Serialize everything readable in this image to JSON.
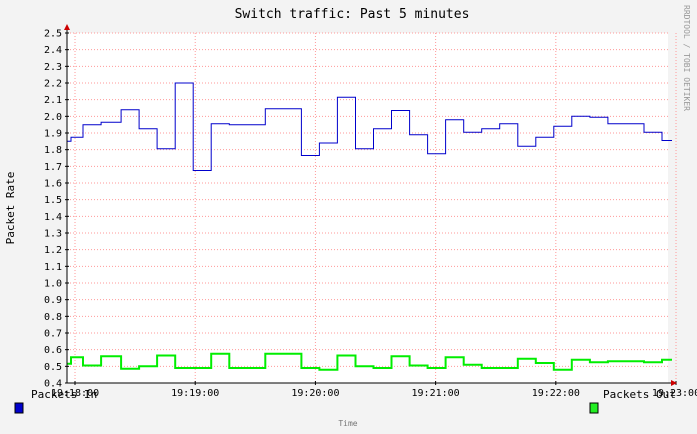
{
  "chart_data": {
    "type": "line",
    "title": "Switch traffic: Past 5 minutes",
    "ylabel": "Packet Rate",
    "xlabel": "Time",
    "watermark": "RRDTOOL / TOBI OETIKER",
    "ylim": [
      0.4,
      2.5
    ],
    "yticks": [
      "0.4",
      "0.5",
      "0.6",
      "0.7",
      "0.8",
      "0.9",
      "1.0",
      "1.1",
      "1.2",
      "1.3",
      "1.4",
      "1.5",
      "1.6",
      "1.7",
      "1.8",
      "1.9",
      "2.0",
      "2.1",
      "2.2",
      "2.3",
      "2.4",
      "2.5"
    ],
    "xticks": [
      "19:18:00",
      "19:19:00",
      "19:20:00",
      "19:21:00",
      "19:22:00",
      "19:23:00"
    ],
    "xtick_values": [
      0,
      60,
      120,
      180,
      240,
      300
    ],
    "xlim": [
      -4,
      296
    ],
    "grid": true,
    "step": true,
    "x": [
      -4,
      -2,
      4,
      13,
      23,
      32,
      41,
      50,
      59,
      68,
      77,
      86,
      95,
      113,
      122,
      131,
      140,
      149,
      158,
      167,
      176,
      185,
      194,
      203,
      212,
      221,
      230,
      239,
      248,
      257,
      266,
      275,
      284,
      293
    ],
    "series": [
      {
        "name": "Packets In",
        "color": "#0000cc",
        "values": [
          1.85,
          1.875,
          1.95,
          1.965,
          2.04,
          1.925,
          1.805,
          2.2,
          1.675,
          1.955,
          1.95,
          1.95,
          2.045,
          1.765,
          1.84,
          2.115,
          1.805,
          1.925,
          2.035,
          1.89,
          1.775,
          1.98,
          1.905,
          1.925,
          1.955,
          1.82,
          1.875,
          1.94,
          2.0,
          1.995,
          1.955,
          1.955,
          1.905,
          1.855
        ]
      },
      {
        "name": "Packets Out",
        "color": "#00ee00",
        "values": [
          0.515,
          0.555,
          0.505,
          0.56,
          0.485,
          0.5,
          0.565,
          0.49,
          0.49,
          0.575,
          0.49,
          0.49,
          0.575,
          0.49,
          0.48,
          0.565,
          0.5,
          0.49,
          0.56,
          0.505,
          0.49,
          0.555,
          0.51,
          0.49,
          0.49,
          0.545,
          0.52,
          0.48,
          0.54,
          0.525,
          0.53,
          0.53,
          0.525,
          0.54
        ]
      }
    ],
    "legend": "bottom"
  }
}
